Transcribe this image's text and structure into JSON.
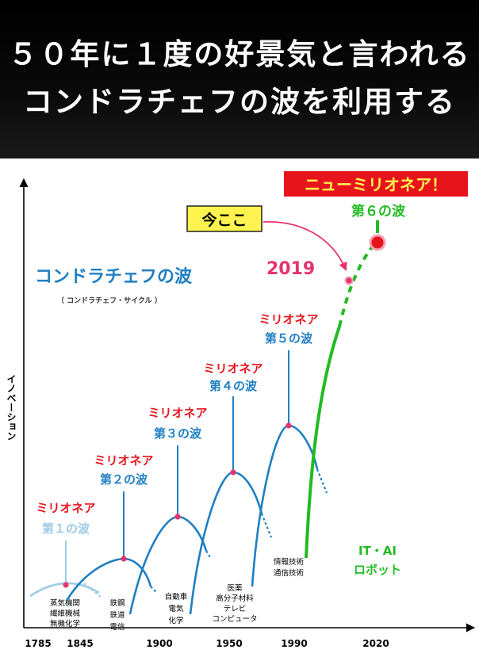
{
  "header": {
    "line1": "５０年に１度の好景気と言われる",
    "line2": "コンドラチェフの波を利用する"
  },
  "chart_data": {
    "type": "line",
    "title": "コンドラチェフの波",
    "subtitle": "（ コンドラチェフ・サイクル ）",
    "ylabel": "イノベーション",
    "x_ticks": [
      "1785",
      "1845",
      "1900",
      "1950",
      "1990",
      "2020"
    ],
    "waves": [
      {
        "name": "第１の波",
        "badge": "ミリオネア",
        "industries": [
          "蒸気機関",
          "繊維機械",
          "無機化学"
        ],
        "color": "#9ccbe6"
      },
      {
        "name": "第２の波",
        "badge": "ミリオネア",
        "industries": [
          "鉄鋼",
          "鉄道",
          "電信"
        ],
        "color": "#1f7fc2"
      },
      {
        "name": "第３の波",
        "badge": "ミリオネア",
        "industries": [
          "自動車",
          "電気",
          "化学"
        ],
        "color": "#1f7fc2"
      },
      {
        "name": "第４の波",
        "badge": "ミリオネア",
        "industries": [
          "医薬",
          "高分子材料",
          "テレビ",
          "コンピュータ"
        ],
        "color": "#1f7fc2"
      },
      {
        "name": "第５の波",
        "badge": "ミリオネア",
        "industries": [
          "情報技術",
          "通信技術"
        ],
        "color": "#1f7fc2"
      },
      {
        "name": "第６の波",
        "badge": "ニューミリオネア！",
        "industries": [
          "IT・AI",
          "ロボット"
        ],
        "color": "#22bb22"
      }
    ],
    "now_label": "今ここ",
    "now_year": "2019",
    "colors": {
      "badge_red": "#e8141c",
      "now_pink": "#e6336e",
      "green": "#22bb22",
      "callout_yellow": "#fff44f"
    }
  }
}
